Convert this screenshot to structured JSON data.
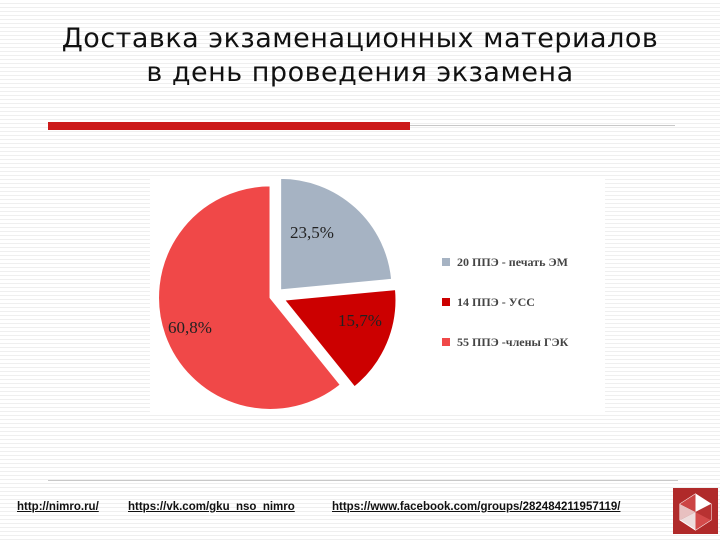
{
  "slide": {
    "title": "Доставка экзаменационных материалов в день проведения экзамена"
  },
  "chart_data": {
    "type": "pie",
    "exploded": true,
    "start_angle_deg": 0,
    "slices": [
      {
        "label": "20 ППЭ - печать ЭМ",
        "value": 23.5,
        "value_label": "23,5%",
        "color": "#a6b3c3"
      },
      {
        "label": "14 ППЭ - УСС",
        "value": 15.7,
        "value_label": "15,7%",
        "color": "#cc0000"
      },
      {
        "label": "55 ППЭ -члены ГЭК",
        "value": 60.8,
        "value_label": "60,8%",
        "color": "#f04848"
      }
    ],
    "legend_position": "right"
  },
  "footer": {
    "links": [
      "http://nimro.ru/",
      "https://vk.com/gku_nso_nimro",
      "https://www.facebook.com/groups/282484211957119/"
    ]
  }
}
